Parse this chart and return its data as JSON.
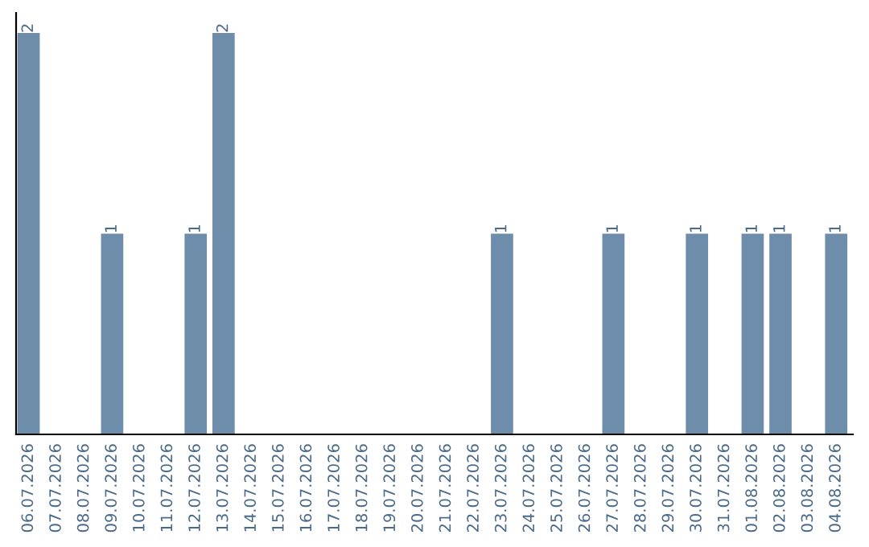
{
  "chart_data": {
    "type": "bar",
    "categories": [
      "06.07.2026",
      "07.07.2026",
      "08.07.2026",
      "09.07.2026",
      "10.07.2026",
      "11.07.2026",
      "12.07.2026",
      "13.07.2026",
      "14.07.2026",
      "15.07.2026",
      "16.07.2026",
      "17.07.2026",
      "18.07.2026",
      "19.07.2026",
      "20.07.2026",
      "21.07.2026",
      "22.07.2026",
      "23.07.2026",
      "24.07.2026",
      "25.07.2026",
      "26.07.2026",
      "27.07.2026",
      "28.07.2026",
      "29.07.2026",
      "30.07.2026",
      "31.07.2026",
      "01.08.2026",
      "02.08.2026",
      "03.08.2026",
      "04.08.2026"
    ],
    "values": [
      2,
      0,
      0,
      1,
      0,
      0,
      1,
      2,
      0,
      0,
      0,
      0,
      0,
      0,
      0,
      0,
      0,
      1,
      0,
      0,
      0,
      1,
      0,
      0,
      1,
      0,
      1,
      1,
      0,
      1
    ],
    "value_labels": [
      "2",
      null,
      null,
      "1",
      null,
      null,
      "1",
      "2",
      null,
      null,
      null,
      null,
      null,
      null,
      null,
      null,
      null,
      "1",
      null,
      null,
      null,
      "1",
      null,
      null,
      "1",
      null,
      "1",
      "1",
      null,
      "1"
    ],
    "color": "#6d8dab",
    "ylim": [
      0,
      2.1
    ],
    "tick_labels": "x",
    "grid": false,
    "legend": false
  }
}
